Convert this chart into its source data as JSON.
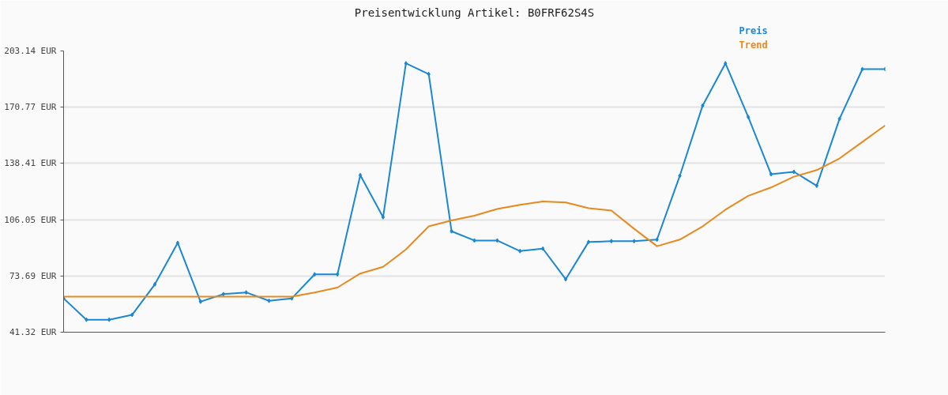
{
  "chart_data": {
    "type": "line",
    "title": "Preisentwicklung Artikel: B0FRF62S4S",
    "categories": [
      null,
      null,
      null,
      null,
      null,
      null,
      null,
      null,
      null,
      null,
      null,
      null,
      null,
      null,
      null,
      null,
      null,
      null,
      null,
      null,
      null,
      null,
      null,
      null,
      null,
      null,
      null,
      null,
      null,
      null,
      null,
      null,
      null,
      null,
      null,
      null,
      null
    ],
    "series": [
      {
        "name": "Preis",
        "color": "#1a87d5",
        "marker": "diamond",
        "values": [
          60.8,
          48.5,
          48.5,
          51.3,
          68.9,
          92.7,
          58.9,
          63.2,
          64.2,
          59.4,
          60.8,
          74.6,
          74.6,
          131.7,
          107.5,
          196.0,
          189.8,
          99.4,
          94.1,
          94.1,
          88.0,
          89.4,
          71.8,
          93.2,
          93.7,
          93.7,
          94.6,
          131.3,
          171.7,
          196.0,
          165.1,
          132.2,
          133.6,
          125.6,
          164.1,
          192.7,
          192.7
        ]
      },
      {
        "name": "Trend",
        "color": "#e8891e",
        "marker": "none",
        "values": [
          61.8,
          61.8,
          61.8,
          61.8,
          61.8,
          61.8,
          61.8,
          61.8,
          61.8,
          61.8,
          61.8,
          64.2,
          67.0,
          75.1,
          78.9,
          88.9,
          102.2,
          105.6,
          108.4,
          112.2,
          114.6,
          116.5,
          116.0,
          112.7,
          111.3,
          100.8,
          90.8,
          94.6,
          102.2,
          111.8,
          119.8,
          124.6,
          130.8,
          134.6,
          141.3,
          150.8,
          160.3
        ]
      }
    ],
    "ylim": [
      41.32,
      203.14
    ],
    "yticks": [
      {
        "value": 41.32,
        "label": "41.32 EUR"
      },
      {
        "value": 73.69,
        "label": "73.69 EUR"
      },
      {
        "value": 106.05,
        "label": "106.05 EUR"
      },
      {
        "value": 138.41,
        "label": "138.41 EUR"
      },
      {
        "value": 170.77,
        "label": "170.77 EUR"
      },
      {
        "value": 203.14,
        "label": "203.14 EUR"
      }
    ],
    "tick_labels": "y",
    "grid": "y",
    "legend": "top right",
    "line_style": "solid"
  }
}
